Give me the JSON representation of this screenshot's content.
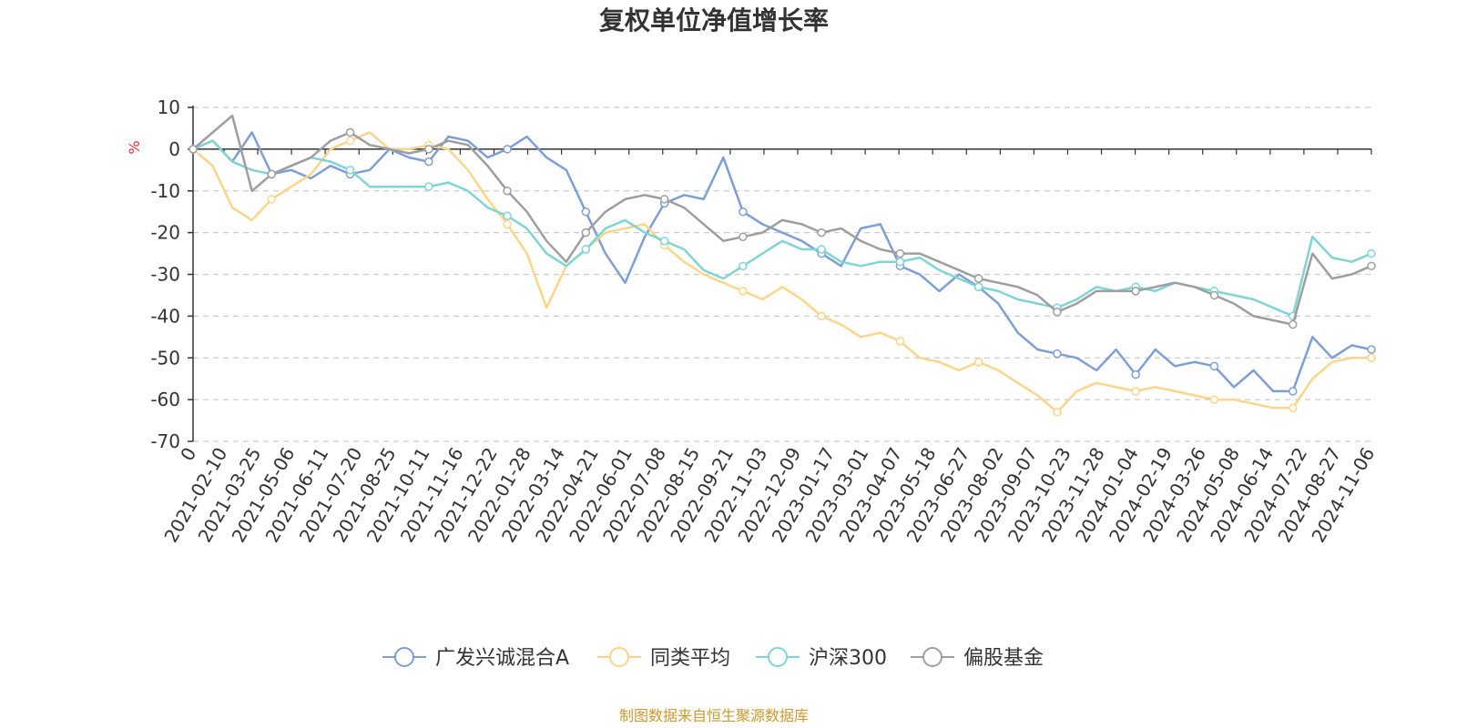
{
  "chart_data": {
    "type": "line",
    "title": "复权单位净值增长率",
    "ylabel": "%",
    "ylim": [
      -70,
      10
    ],
    "yticks": [
      10,
      0,
      -10,
      -20,
      -30,
      -40,
      -50,
      -60,
      -70
    ],
    "origin_label": "0",
    "xticks": [
      "2021-02-10",
      "2021-03-25",
      "2021-05-06",
      "2021-06-11",
      "2021-07-20",
      "2021-08-25",
      "2021-10-11",
      "2021-11-16",
      "2021-12-22",
      "2022-01-28",
      "2022-03-14",
      "2022-04-21",
      "2022-06-01",
      "2022-07-08",
      "2022-08-15",
      "2022-09-21",
      "2022-11-03",
      "2022-12-09",
      "2023-01-17",
      "2023-03-01",
      "2023-04-07",
      "2023-05-18",
      "2023-06-27",
      "2023-08-02",
      "2023-09-07",
      "2023-10-23",
      "2023-11-28",
      "2024-01-04",
      "2024-02-19",
      "2024-03-26",
      "2024-05-08",
      "2024-06-14",
      "2024-07-22",
      "2024-08-27",
      "2024-11-06"
    ],
    "legend_position": "bottom",
    "series": [
      {
        "name": "广发兴诚混合A",
        "color": "#7d9fd6",
        "values": [
          0,
          2,
          -3,
          4,
          -6,
          -5,
          -7,
          -4,
          -6,
          -5,
          0,
          -2,
          -3,
          3,
          2,
          -2,
          0,
          3,
          -2,
          -5,
          -15,
          -25,
          -32,
          -21,
          -13,
          -11,
          -12,
          -2,
          -15,
          -18,
          -20,
          -22,
          -25,
          -28,
          -19,
          -18,
          -28,
          -30,
          -34,
          -30,
          -33,
          -37,
          -44,
          -48,
          -49,
          -50,
          -53,
          -48,
          -54,
          -48,
          -52,
          -51,
          -52,
          -57,
          -53,
          -58,
          -58,
          -45,
          -50,
          -47,
          -48
        ]
      },
      {
        "name": "同类平均",
        "color": "#fdd58a",
        "values": [
          0,
          -4,
          -14,
          -17,
          -12,
          -9,
          -6,
          0,
          2,
          4,
          0,
          0,
          1,
          0,
          -5,
          -12,
          -18,
          -25,
          -38,
          -28,
          -24,
          -20,
          -19,
          -18,
          -23,
          -27,
          -30,
          -32,
          -34,
          -36,
          -33,
          -36,
          -40,
          -42,
          -45,
          -44,
          -46,
          -50,
          -51,
          -53,
          -51,
          -53,
          -56,
          -59,
          -63,
          -58,
          -56,
          -57,
          -58,
          -57,
          -58,
          -59,
          -60,
          -60,
          -61,
          -62,
          -62,
          -55,
          -51,
          -50,
          -50
        ]
      },
      {
        "name": "沪深300",
        "color": "#7fd4d4",
        "values": [
          0,
          2,
          -3,
          -5,
          -6,
          -4,
          -2,
          -3,
          -5,
          -9,
          -9,
          -9,
          -9,
          -8,
          -10,
          -14,
          -16,
          -19,
          -25,
          -28,
          -24,
          -19,
          -17,
          -20,
          -22,
          -24,
          -29,
          -31,
          -28,
          -25,
          -22,
          -24,
          -24,
          -27,
          -28,
          -27,
          -27,
          -26,
          -29,
          -31,
          -33,
          -34,
          -36,
          -37,
          -38,
          -36,
          -33,
          -34,
          -33,
          -34,
          -32,
          -33,
          -34,
          -35,
          -36,
          -38,
          -40,
          -21,
          -26,
          -27,
          -25
        ]
      },
      {
        "name": "偏股基金",
        "color": "#9e9e9e",
        "values": [
          0,
          4,
          8,
          -10,
          -6,
          -4,
          -2,
          2,
          4,
          1,
          0,
          -1,
          0,
          2,
          1,
          -4,
          -10,
          -15,
          -22,
          -27,
          -20,
          -15,
          -12,
          -11,
          -12,
          -14,
          -18,
          -22,
          -21,
          -20,
          -17,
          -18,
          -20,
          -19,
          -22,
          -24,
          -25,
          -25,
          -27,
          -29,
          -31,
          -32,
          -33,
          -35,
          -39,
          -37,
          -34,
          -34,
          -34,
          -33,
          -32,
          -33,
          -35,
          -37,
          -40,
          -41,
          -42,
          -25,
          -31,
          -30,
          -28
        ]
      }
    ]
  },
  "source_note": "制图数据来自恒生聚源数据库"
}
